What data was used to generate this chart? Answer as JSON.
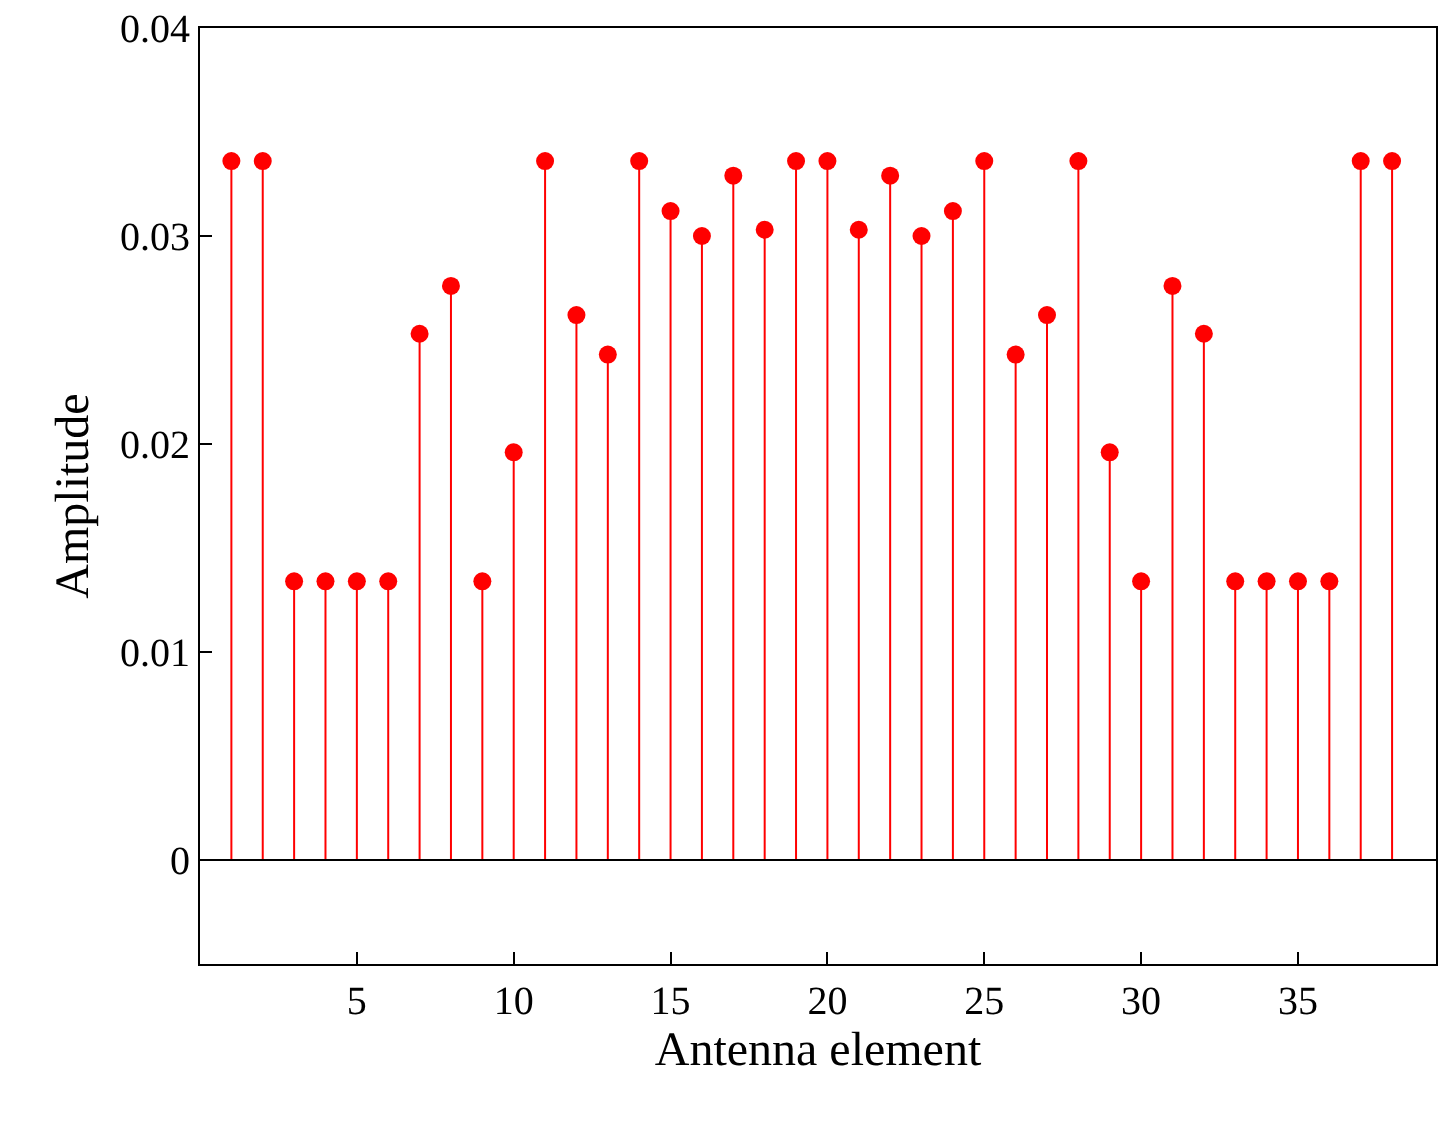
{
  "chart_data": {
    "type": "lollipop",
    "xlabel": "Antenna element",
    "ylabel": "Amplitude",
    "x": [
      1,
      2,
      3,
      4,
      5,
      6,
      7,
      8,
      9,
      10,
      11,
      12,
      13,
      14,
      15,
      16,
      17,
      18,
      19,
      20,
      21,
      22,
      23,
      24,
      25,
      26,
      27,
      28,
      29,
      30,
      31,
      32,
      33,
      34,
      35,
      36,
      37,
      38
    ],
    "series": [
      {
        "color": "#ff0000",
        "values": [
          0.0336,
          0.0336,
          0.0134,
          0.0134,
          0.0134,
          0.0134,
          0.0253,
          0.0276,
          0.0134,
          0.0196,
          0.0336,
          0.0262,
          0.0243,
          0.0336,
          0.0312,
          0.03,
          0.0329,
          0.0303,
          0.0336,
          0.0336,
          0.0303,
          0.0329,
          0.03,
          0.0312,
          0.0336,
          0.0243,
          0.0262,
          0.0336,
          0.0196,
          0.0134,
          0.0276,
          0.0253,
          0.0134,
          0.0134,
          0.0134,
          0.0134,
          0.0336,
          0.0336
        ]
      }
    ],
    "xlim": [
      0,
      39.4
    ],
    "xticks": [
      5,
      10,
      15,
      20,
      25,
      30,
      35
    ],
    "ylim": [
      -0.005,
      0.04
    ],
    "yticks": [
      0,
      0.01,
      0.02,
      0.03,
      0.04
    ],
    "ref_lines": [
      {
        "axis": "y",
        "value": 0,
        "color": "#000000"
      }
    ],
    "marker": "circle"
  }
}
